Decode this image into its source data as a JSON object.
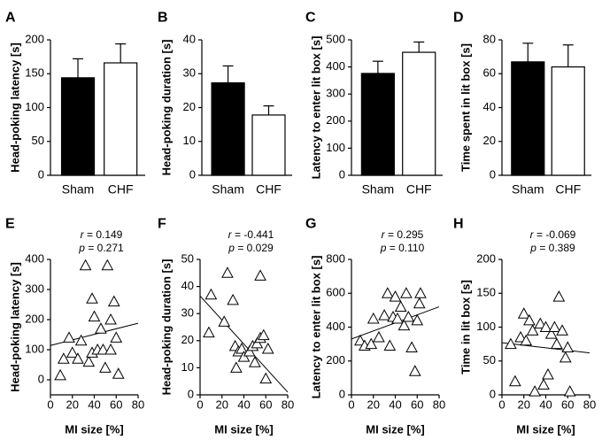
{
  "chart_data": [
    {
      "panel": "A",
      "type": "bar",
      "ylabel": "Head-poking latency [s]",
      "ylim": [
        0,
        200
      ],
      "yticks": [
        0,
        50,
        100,
        150,
        200
      ],
      "categories": [
        "Sham",
        "CHF"
      ],
      "values": [
        144,
        166
      ],
      "errors": [
        28,
        28
      ],
      "fills": [
        "#000000",
        "#ffffff"
      ]
    },
    {
      "panel": "B",
      "type": "bar",
      "ylabel": "Head-poking duration [s]",
      "ylim": [
        0,
        40
      ],
      "yticks": [
        0,
        10,
        20,
        30,
        40
      ],
      "categories": [
        "Sham",
        "CHF"
      ],
      "values": [
        27.3,
        17.8
      ],
      "errors": [
        5,
        2.7
      ],
      "fills": [
        "#000000",
        "#ffffff"
      ]
    },
    {
      "panel": "C",
      "type": "bar",
      "ylabel": "Latency to enter lit box [s]",
      "ylim": [
        0,
        500
      ],
      "yticks": [
        0,
        100,
        200,
        300,
        400,
        500
      ],
      "categories": [
        "Sham",
        "CHF"
      ],
      "values": [
        376,
        454
      ],
      "errors": [
        45,
        38
      ],
      "fills": [
        "#000000",
        "#ffffff"
      ]
    },
    {
      "panel": "D",
      "type": "bar",
      "ylabel": "Time spent in lit box [s]",
      "ylim": [
        0,
        80
      ],
      "yticks": [
        0,
        20,
        40,
        60,
        80
      ],
      "categories": [
        "Sham",
        "CHF"
      ],
      "values": [
        67,
        64
      ],
      "errors": [
        11,
        13
      ],
      "fills": [
        "#000000",
        "#ffffff"
      ]
    },
    {
      "panel": "E",
      "type": "scatter",
      "ylabel": "Head-poking latency [s]",
      "xlabel": "MI size [%]",
      "xlim": [
        0,
        80
      ],
      "xticks": [
        0,
        20,
        40,
        60,
        80
      ],
      "ylim": [
        -50,
        400
      ],
      "yticks": [
        0,
        100,
        200,
        300,
        400
      ],
      "r_text": "= 0.149",
      "p_text": "= 0.271",
      "x": [
        9,
        12,
        17,
        20,
        25,
        28,
        32,
        35,
        38,
        38,
        40,
        43,
        46,
        48,
        50,
        52,
        55,
        55,
        58,
        60,
        62
      ],
      "y": [
        15,
        70,
        140,
        90,
        70,
        130,
        380,
        60,
        270,
        90,
        210,
        100,
        170,
        100,
        40,
        380,
        200,
        100,
        260,
        140,
        20
      ],
      "fit": {
        "x": [
          0,
          80
        ],
        "y": [
          114,
          188
        ]
      }
    },
    {
      "panel": "F",
      "type": "scatter",
      "ylabel": "Head-poking duration [s]",
      "xlabel": "MI size [%]",
      "xlim": [
        0,
        80
      ],
      "xticks": [
        0,
        20,
        40,
        60,
        80
      ],
      "ylim": [
        0,
        50
      ],
      "yticks": [
        0,
        10,
        20,
        30,
        40,
        50
      ],
      "r_text": "= -0.441",
      "p_text": "= 0.029",
      "x": [
        8,
        10,
        22,
        25,
        30,
        32,
        33,
        35,
        38,
        40,
        45,
        48,
        50,
        52,
        55,
        55,
        58,
        60,
        62
      ],
      "y": [
        23,
        37,
        27,
        45,
        35,
        18,
        10,
        16,
        17,
        14,
        16,
        18,
        12,
        19,
        21,
        44,
        22,
        6,
        17
      ],
      "fit": {
        "x": [
          0,
          80
        ],
        "y": [
          36.5,
          1
        ]
      }
    },
    {
      "panel": "G",
      "type": "scatter",
      "ylabel": "Latency to enter lit box [s]",
      "xlabel": "MI size [%]",
      "xlim": [
        0,
        80
      ],
      "xticks": [
        0,
        20,
        40,
        60,
        80
      ],
      "ylim": [
        0,
        800
      ],
      "yticks": [
        0,
        200,
        400,
        600,
        800
      ],
      "r_text": "= 0.295",
      "p_text": "= 0.110",
      "x": [
        8,
        12,
        18,
        20,
        25,
        30,
        33,
        35,
        38,
        40,
        42,
        45,
        48,
        50,
        52,
        55,
        58,
        60,
        62,
        63
      ],
      "y": [
        320,
        290,
        300,
        450,
        340,
        470,
        600,
        290,
        460,
        580,
        450,
        520,
        410,
        600,
        460,
        280,
        140,
        440,
        540,
        600
      ],
      "fit": {
        "x": [
          0,
          80
        ],
        "y": [
          330,
          520
        ]
      }
    },
    {
      "panel": "H",
      "type": "scatter",
      "ylabel": "Time in lit box [s]",
      "xlabel": "MI size [%]",
      "xlim": [
        0,
        80
      ],
      "xticks": [
        0,
        20,
        40,
        60,
        80
      ],
      "ylim": [
        0,
        200
      ],
      "yticks": [
        0,
        50,
        100,
        150,
        200
      ],
      "r_text": "= -0.069",
      "p_text": "= 0.389",
      "x": [
        8,
        12,
        17,
        20,
        22,
        25,
        28,
        30,
        35,
        38,
        40,
        42,
        45,
        48,
        50,
        52,
        55,
        58,
        60,
        62
      ],
      "y": [
        75,
        20,
        85,
        120,
        80,
        110,
        95,
        5,
        105,
        15,
        100,
        30,
        90,
        100,
        75,
        145,
        95,
        55,
        70,
        5
      ],
      "fit": {
        "x": [
          0,
          80
        ],
        "y": [
          77,
          62
        ]
      }
    }
  ]
}
